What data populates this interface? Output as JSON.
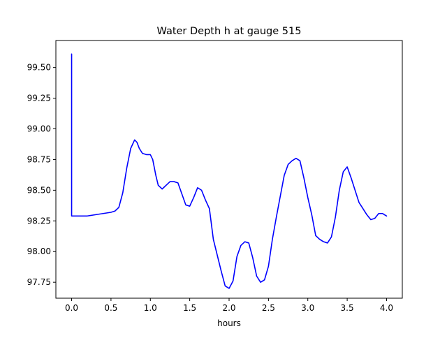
{
  "chart_data": {
    "type": "line",
    "title": "Water Depth h at gauge 515",
    "xlabel": "hours",
    "ylabel": "",
    "xlim": [
      -0.2,
      4.2
    ],
    "ylim": [
      97.62,
      99.72
    ],
    "grid": false,
    "x_ticks": [
      0.0,
      0.5,
      1.0,
      1.5,
      2.0,
      2.5,
      3.0,
      3.5,
      4.0
    ],
    "x_tick_labels": [
      "0.0",
      "0.5",
      "1.0",
      "1.5",
      "2.0",
      "2.5",
      "3.0",
      "3.5",
      "4.0"
    ],
    "y_ticks": [
      97.75,
      98.0,
      98.25,
      98.5,
      98.75,
      99.0,
      99.25,
      99.5
    ],
    "y_tick_labels": [
      "97.75",
      "98.00",
      "98.25",
      "98.50",
      "98.75",
      "99.00",
      "99.25",
      "99.50"
    ],
    "series": [
      {
        "color": "#0000ff",
        "x": [
          0.0,
          0.0,
          0.0,
          0.2,
          0.3,
          0.4,
          0.5,
          0.55,
          0.6,
          0.65,
          0.7,
          0.75,
          0.8,
          0.83,
          0.86,
          0.9,
          0.95,
          1.0,
          1.03,
          1.07,
          1.1,
          1.15,
          1.2,
          1.25,
          1.3,
          1.35,
          1.4,
          1.45,
          1.5,
          1.55,
          1.6,
          1.65,
          1.7,
          1.75,
          1.8,
          1.85,
          1.9,
          1.95,
          2.0,
          2.05,
          2.1,
          2.15,
          2.2,
          2.25,
          2.3,
          2.35,
          2.4,
          2.45,
          2.5,
          2.55,
          2.6,
          2.65,
          2.7,
          2.75,
          2.8,
          2.85,
          2.9,
          2.95,
          3.0,
          3.05,
          3.1,
          3.15,
          3.2,
          3.25,
          3.3,
          3.35,
          3.4,
          3.45,
          3.5,
          3.55,
          3.6,
          3.65,
          3.7,
          3.75,
          3.8,
          3.85,
          3.9,
          3.95,
          4.0
        ],
        "y": [
          99.61,
          98.5,
          98.29,
          98.29,
          98.3,
          98.31,
          98.32,
          98.33,
          98.36,
          98.48,
          98.68,
          98.84,
          98.91,
          98.89,
          98.84,
          98.8,
          98.79,
          98.79,
          98.75,
          98.62,
          98.54,
          98.51,
          98.54,
          98.57,
          98.57,
          98.56,
          98.47,
          98.38,
          98.37,
          98.44,
          98.52,
          98.5,
          98.42,
          98.35,
          98.1,
          97.97,
          97.84,
          97.72,
          97.7,
          97.76,
          97.96,
          98.05,
          98.08,
          98.07,
          97.95,
          97.8,
          97.75,
          97.77,
          97.88,
          98.1,
          98.28,
          98.45,
          98.62,
          98.71,
          98.74,
          98.76,
          98.74,
          98.6,
          98.44,
          98.3,
          98.13,
          98.1,
          98.08,
          98.07,
          98.12,
          98.28,
          98.5,
          98.65,
          98.69,
          98.6,
          98.5,
          98.4,
          98.35,
          98.3,
          98.26,
          98.27,
          98.31,
          98.31,
          98.29
        ]
      }
    ]
  }
}
